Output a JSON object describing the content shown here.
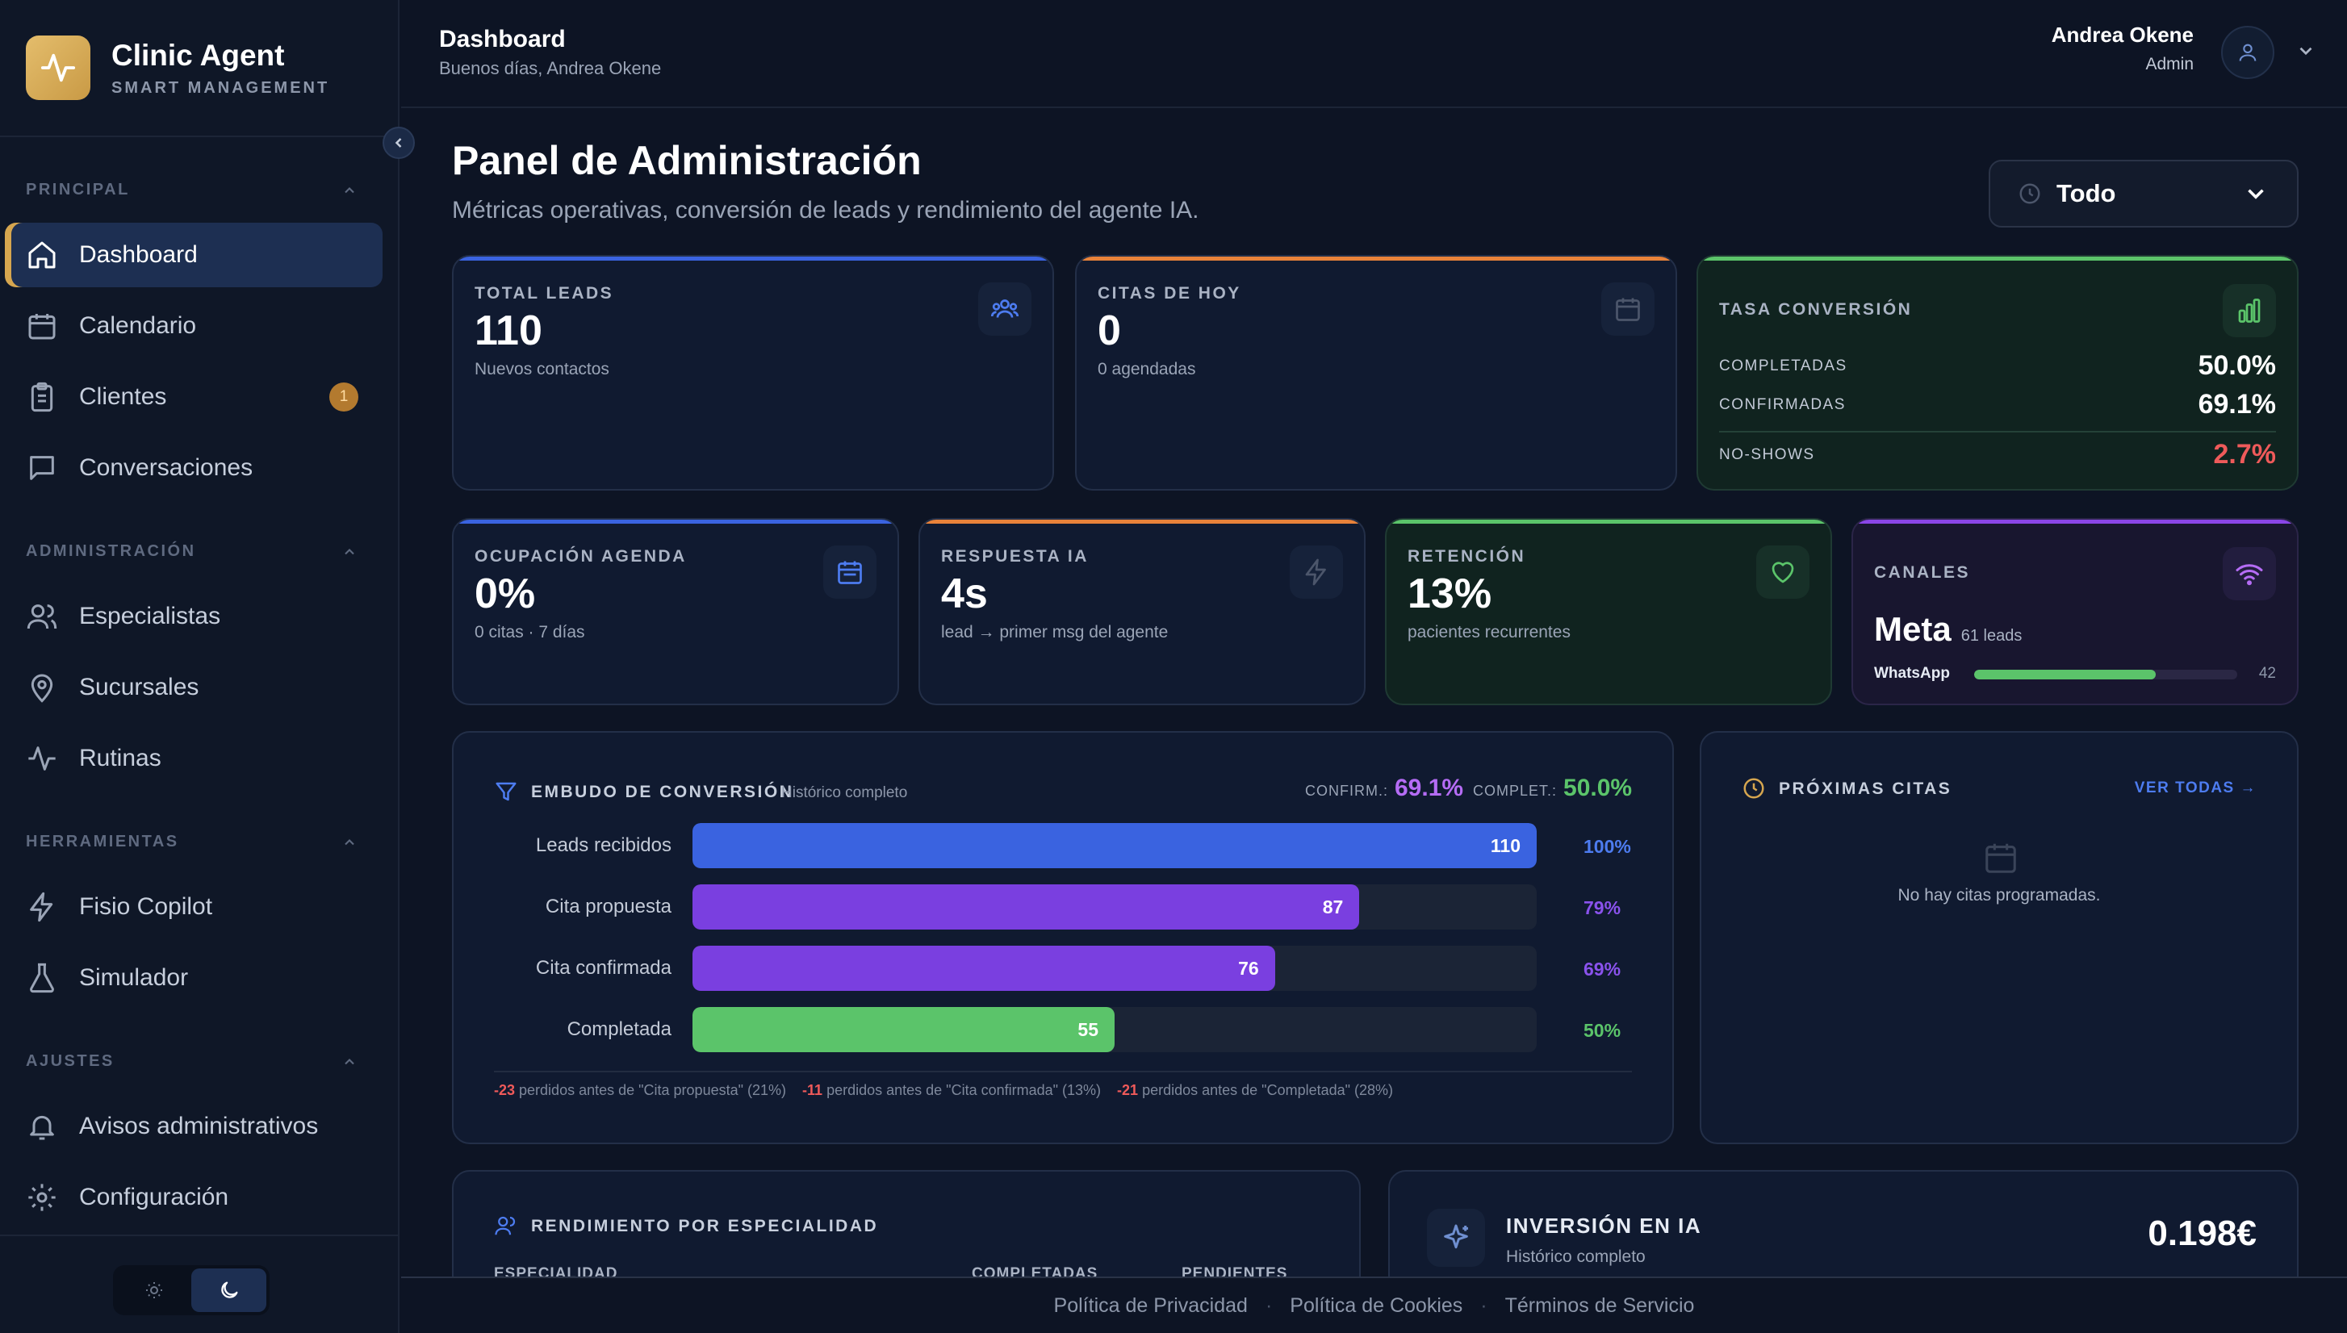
{
  "brand": {
    "title": "Clinic Agent",
    "subtitle": "SMART MANAGEMENT"
  },
  "sidebar": {
    "sections": [
      {
        "title": "PRINCIPAL"
      },
      {
        "title": "ADMINISTRACIÓN"
      },
      {
        "title": "HERRAMIENTAS"
      },
      {
        "title": "AJUSTES"
      }
    ],
    "items": [
      {
        "label": "Dashboard",
        "icon": "home-icon",
        "active": true
      },
      {
        "label": "Calendario",
        "icon": "calendar-icon"
      },
      {
        "label": "Clientes",
        "icon": "clipboard-icon",
        "badge": "1"
      },
      {
        "label": "Conversaciones",
        "icon": "chat-icon"
      },
      {
        "label": "Especialistas",
        "icon": "users-icon"
      },
      {
        "label": "Sucursales",
        "icon": "map-pin-icon"
      },
      {
        "label": "Rutinas",
        "icon": "activity-icon"
      },
      {
        "label": "Fisio Copilot",
        "icon": "bolt-icon"
      },
      {
        "label": "Simulador",
        "icon": "flask-icon"
      },
      {
        "label": "Avisos administrativos",
        "icon": "bell-icon"
      },
      {
        "label": "Configuración",
        "icon": "gear-icon"
      }
    ]
  },
  "header": {
    "title": "Dashboard",
    "greeting": "Buenos días, Andrea Okene",
    "user_name": "Andrea Okene",
    "user_role": "Admin"
  },
  "main": {
    "title": "Panel de Administración",
    "subtitle": "Métricas operativas, conversión de leads y rendimiento del agente IA.",
    "filter_value": "Todo"
  },
  "kpis": {
    "total_leads": {
      "label": "TOTAL LEADS",
      "value": "110",
      "note": "Nuevos contactos"
    },
    "citas_hoy": {
      "label": "CITAS DE HOY",
      "value": "0",
      "note": "0 agendadas"
    },
    "tasa": {
      "label": "TASA CONVERSIÓN",
      "completadas_label": "COMPLETADAS",
      "completadas": "50.0%",
      "confirmadas_label": "CONFIRMADAS",
      "confirmadas": "69.1%",
      "noshows_label": "NO-SHOWS",
      "noshows": "2.7%"
    },
    "ocupacion": {
      "label": "OCUPACIÓN AGENDA",
      "value": "0%",
      "note": "0 citas · 7 días"
    },
    "respuesta": {
      "label": "RESPUESTA IA",
      "value": "4s",
      "note": "lead → primer msg del agente"
    },
    "retencion": {
      "label": "RETENCIÓN",
      "value": "13%",
      "note": "pacientes recurrentes"
    },
    "canales": {
      "label": "CANALES",
      "top": "Meta",
      "top_leads": "61 leads",
      "bar_label": "WhatsApp",
      "bar_value": "42",
      "bar_fraction": 0.69
    }
  },
  "funnel": {
    "title": "EMBUDO DE CONVERSIÓN",
    "subtitle": "Histórico completo",
    "confirm_label": "CONFIRM.:",
    "confirm_value": "69.1%",
    "complet_label": "COMPLET.:",
    "complet_value": "50.0%",
    "rows": [
      {
        "label": "Leads recibidos",
        "value": 110,
        "pct": "100%",
        "fraction": 1.0,
        "color": "#3a63e0",
        "pct_color": "#4d7cf0"
      },
      {
        "label": "Cita propuesta",
        "value": 87,
        "pct": "79%",
        "fraction": 0.79,
        "color": "#7a3fe0",
        "pct_color": "#8a52ec"
      },
      {
        "label": "Cita confirmada",
        "value": 76,
        "pct": "69%",
        "fraction": 0.69,
        "color": "#7a3fe0",
        "pct_color": "#8a52ec"
      },
      {
        "label": "Completada",
        "value": 55,
        "pct": "50%",
        "fraction": 0.5,
        "color": "#5bc46a",
        "pct_color": "#5bc46a"
      }
    ],
    "losses": [
      {
        "num": "-23",
        "text": "perdidos antes de \"Cita propuesta\" (21%)"
      },
      {
        "num": "-11",
        "text": "perdidos antes de \"Cita confirmada\" (13%)"
      },
      {
        "num": "-21",
        "text": "perdidos antes de \"Completada\" (28%)"
      }
    ]
  },
  "upcoming": {
    "title": "PRÓXIMAS CITAS",
    "link": "VER TODAS →",
    "empty": "No hay citas programadas."
  },
  "specialty": {
    "title": "RENDIMIENTO POR ESPECIALIDAD",
    "col1": "ESPECIALIDAD",
    "col2": "COMPLETADAS",
    "col3": "PENDIENTES"
  },
  "investment": {
    "title": "INVERSIÓN EN IA",
    "subtitle": "Histórico completo",
    "value": "0.198€"
  },
  "footer": {
    "privacy": "Política de Privacidad",
    "cookies": "Política de Cookies",
    "terms": "Términos de Servicio"
  },
  "colors": {
    "accent_gold": "#d6a64f",
    "blue": "#3a63e0",
    "orange": "#e8823a",
    "green": "#5bc46a",
    "purple": "#8a45e6",
    "red": "#ef5a5a"
  }
}
